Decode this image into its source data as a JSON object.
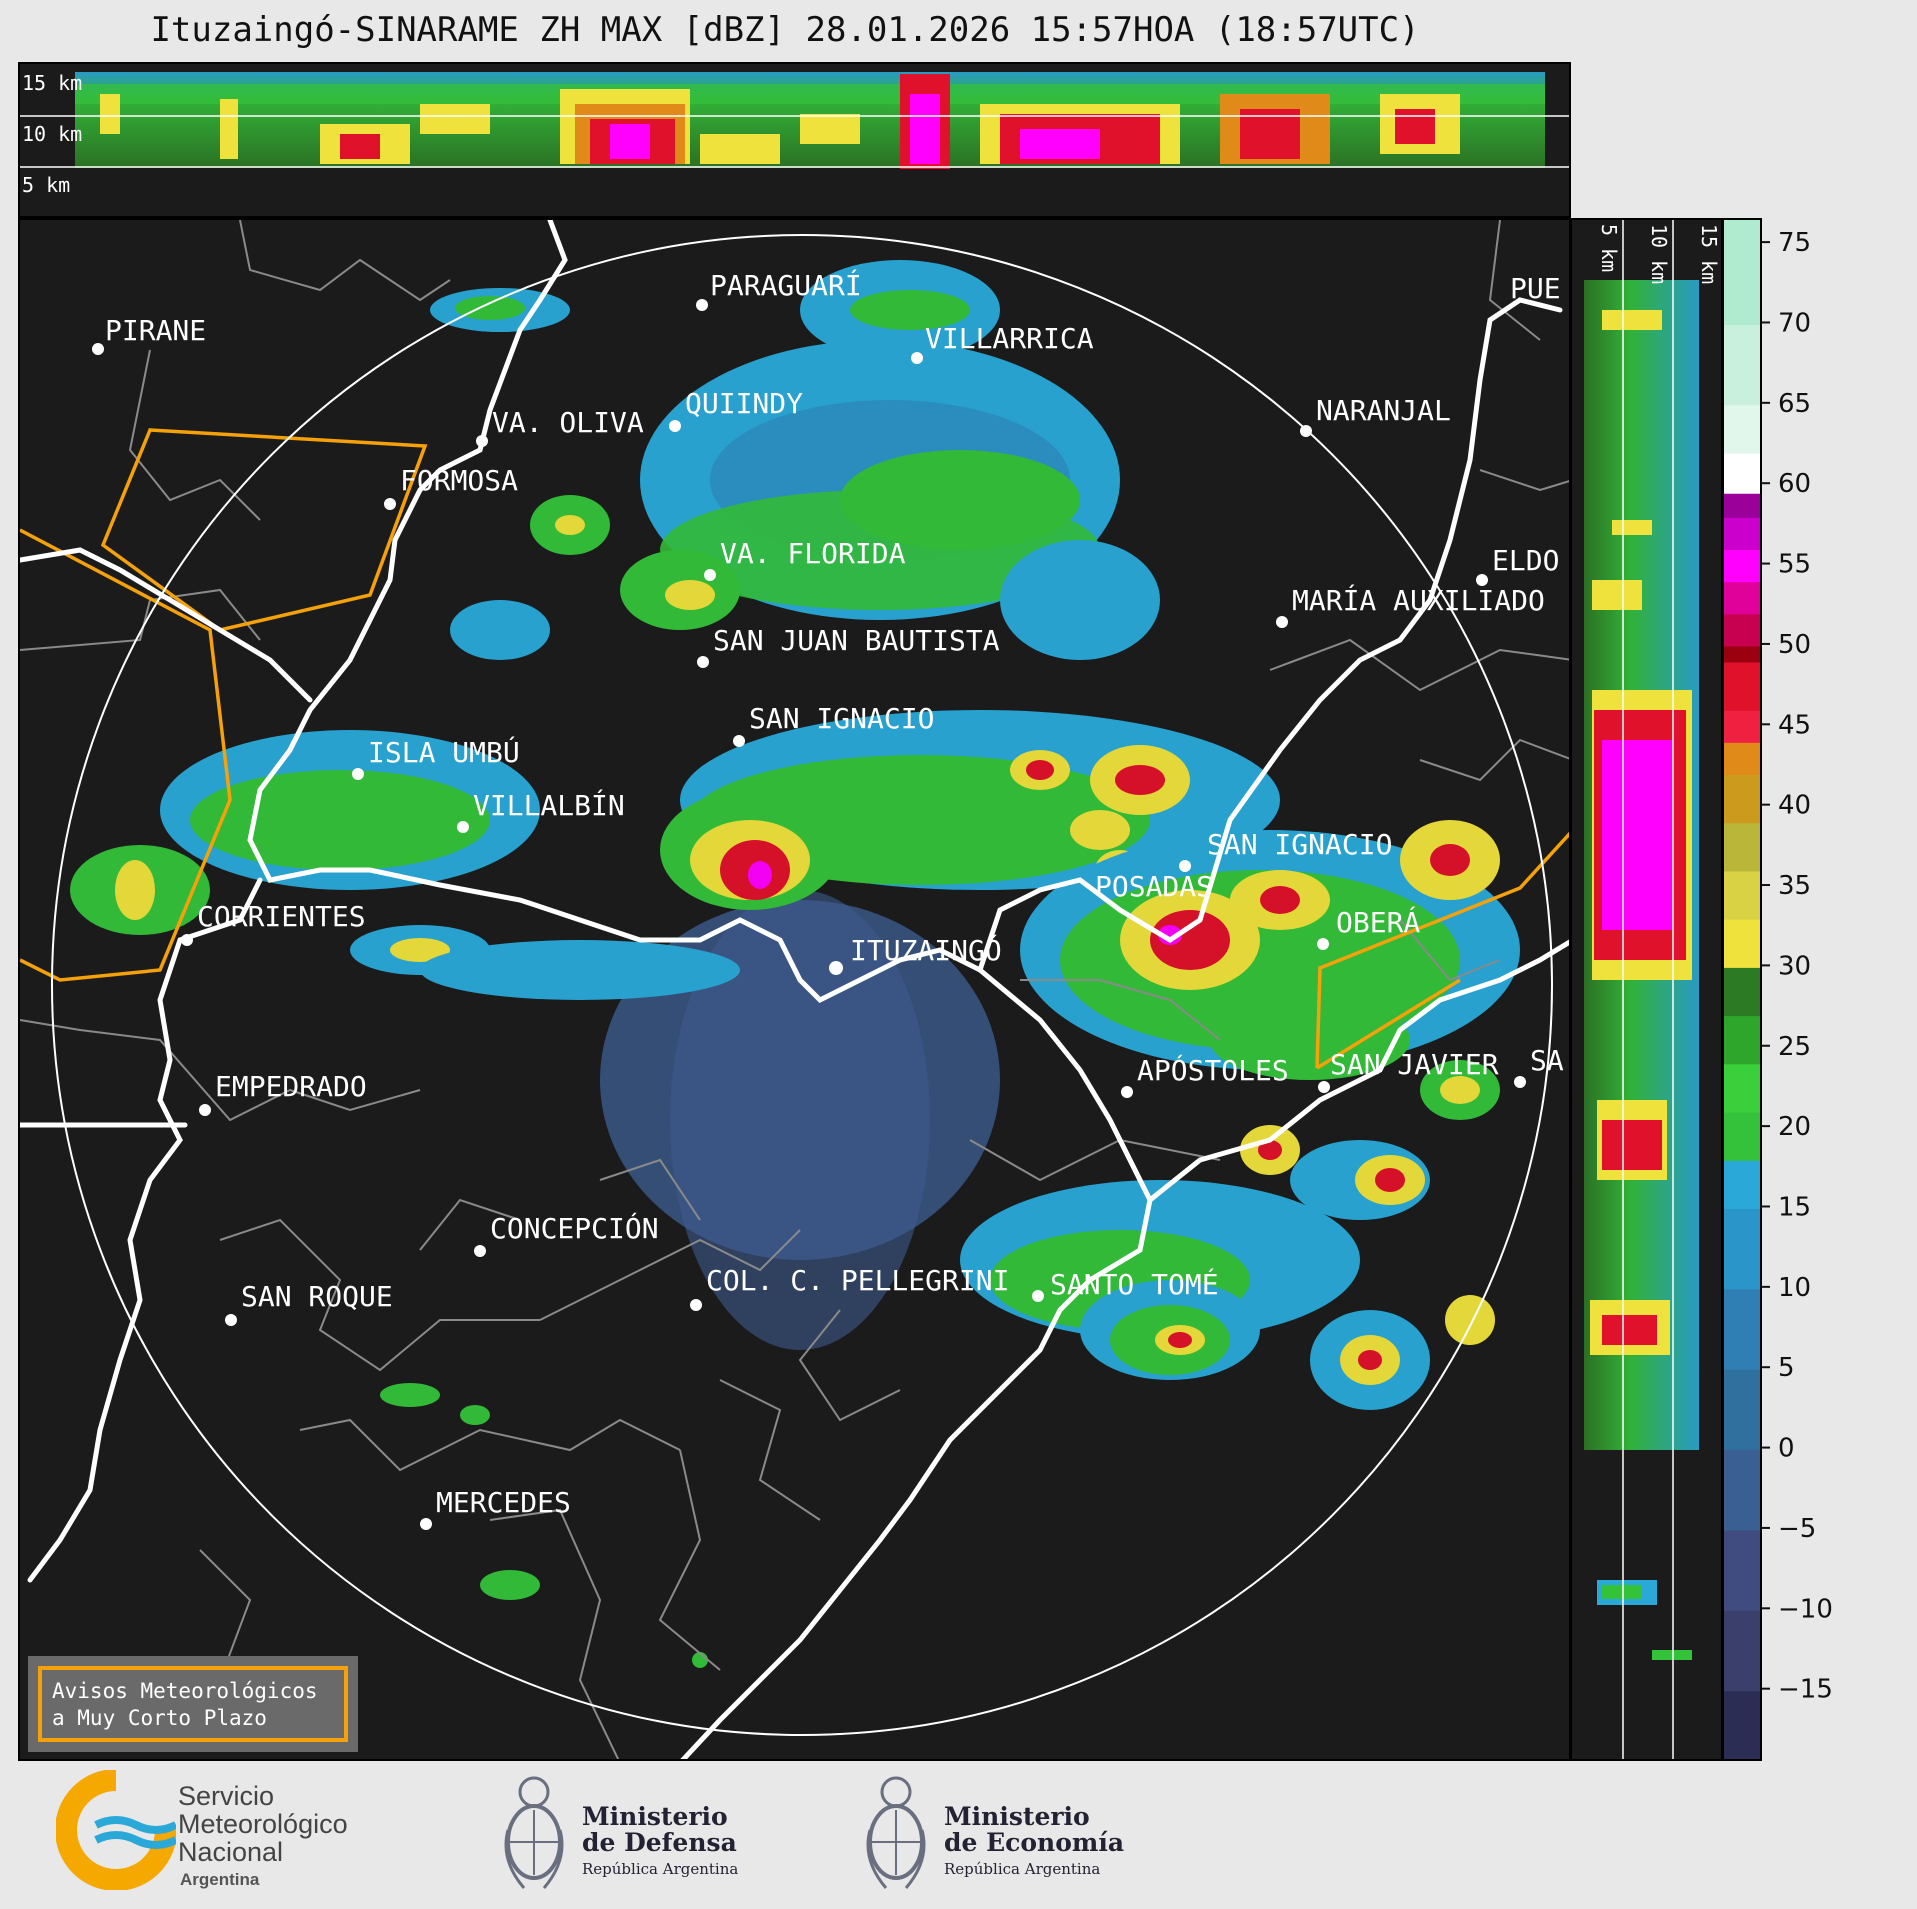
{
  "title": "Ituzaingó-SINARAME ZH MAX [dBZ] 28.01.2026 15:57HOA (18:57UTC)",
  "top_panel": {
    "levels": [
      "15 km",
      "10 km",
      "5 km"
    ]
  },
  "side_panel": {
    "levels": [
      "5 km",
      "10 km",
      "15 km"
    ]
  },
  "radar_site": "ITUZAINGÓ",
  "places": [
    "PIRANE",
    "PARAGUARÍ",
    "VILLARRICA",
    "QUIINDY",
    "VA. OLIVA",
    "FORMOSA",
    "NARANJAL",
    "PUE",
    "ELDO",
    "MARÍA AUXILIADO",
    "VA. FLORIDA",
    "SAN JUAN BAUTISTA",
    "SAN IGNACIO",
    "ISLA UMBÚ",
    "VILLALBÍN",
    "SAN IGNACIO",
    "POSADAS",
    "OBERÁ",
    "CORRIENTES",
    "EMPEDRADO",
    "APÓSTOLES",
    "SAN JAVIER",
    "SA",
    "CONCEPCIÓN",
    "COL. C. PELLEGRINI",
    "SANTO TOMÉ",
    "SAN ROQUE",
    "MERCEDES"
  ],
  "colorbar": {
    "unit": "dBZ",
    "ticks": [
      "75",
      "70",
      "65",
      "60",
      "55",
      "50",
      "45",
      "40",
      "35",
      "30",
      "25",
      "20",
      "15",
      "10",
      "5",
      "0",
      "−5",
      "−10",
      "−15"
    ],
    "range": [
      -19.5,
      76.5
    ],
    "colors": {
      "low": "#3b3f6b",
      "mid_low": "#2f7fb5",
      "cyan": "#2aa9d8",
      "green": "#34c23a",
      "dark_green": "#2d7a25",
      "yellow": "#f0e23c",
      "olive": "#b9b63a",
      "orange": "#e08a1a",
      "red": "#e0112b",
      "dark_red": "#9a0010",
      "magenta": "#ff00ff",
      "purple": "#9b009b",
      "white": "#ffffff",
      "mint": "#9fe8c8"
    }
  },
  "warning_box": {
    "line1": "Avisos Meteorológicos",
    "line2": "a Muy Corto Plazo",
    "border_color": "#f5a10a"
  },
  "logos": {
    "smn": {
      "line1": "Servicio",
      "line2": "Meteorológico",
      "line3": "Nacional",
      "line4": "Argentina"
    },
    "defensa": {
      "line1": "Ministerio",
      "line2": "de Defensa",
      "line3": "República Argentina"
    },
    "economia": {
      "line1": "Ministerio",
      "line2": "de Economía",
      "line3": "República Argentina"
    }
  }
}
